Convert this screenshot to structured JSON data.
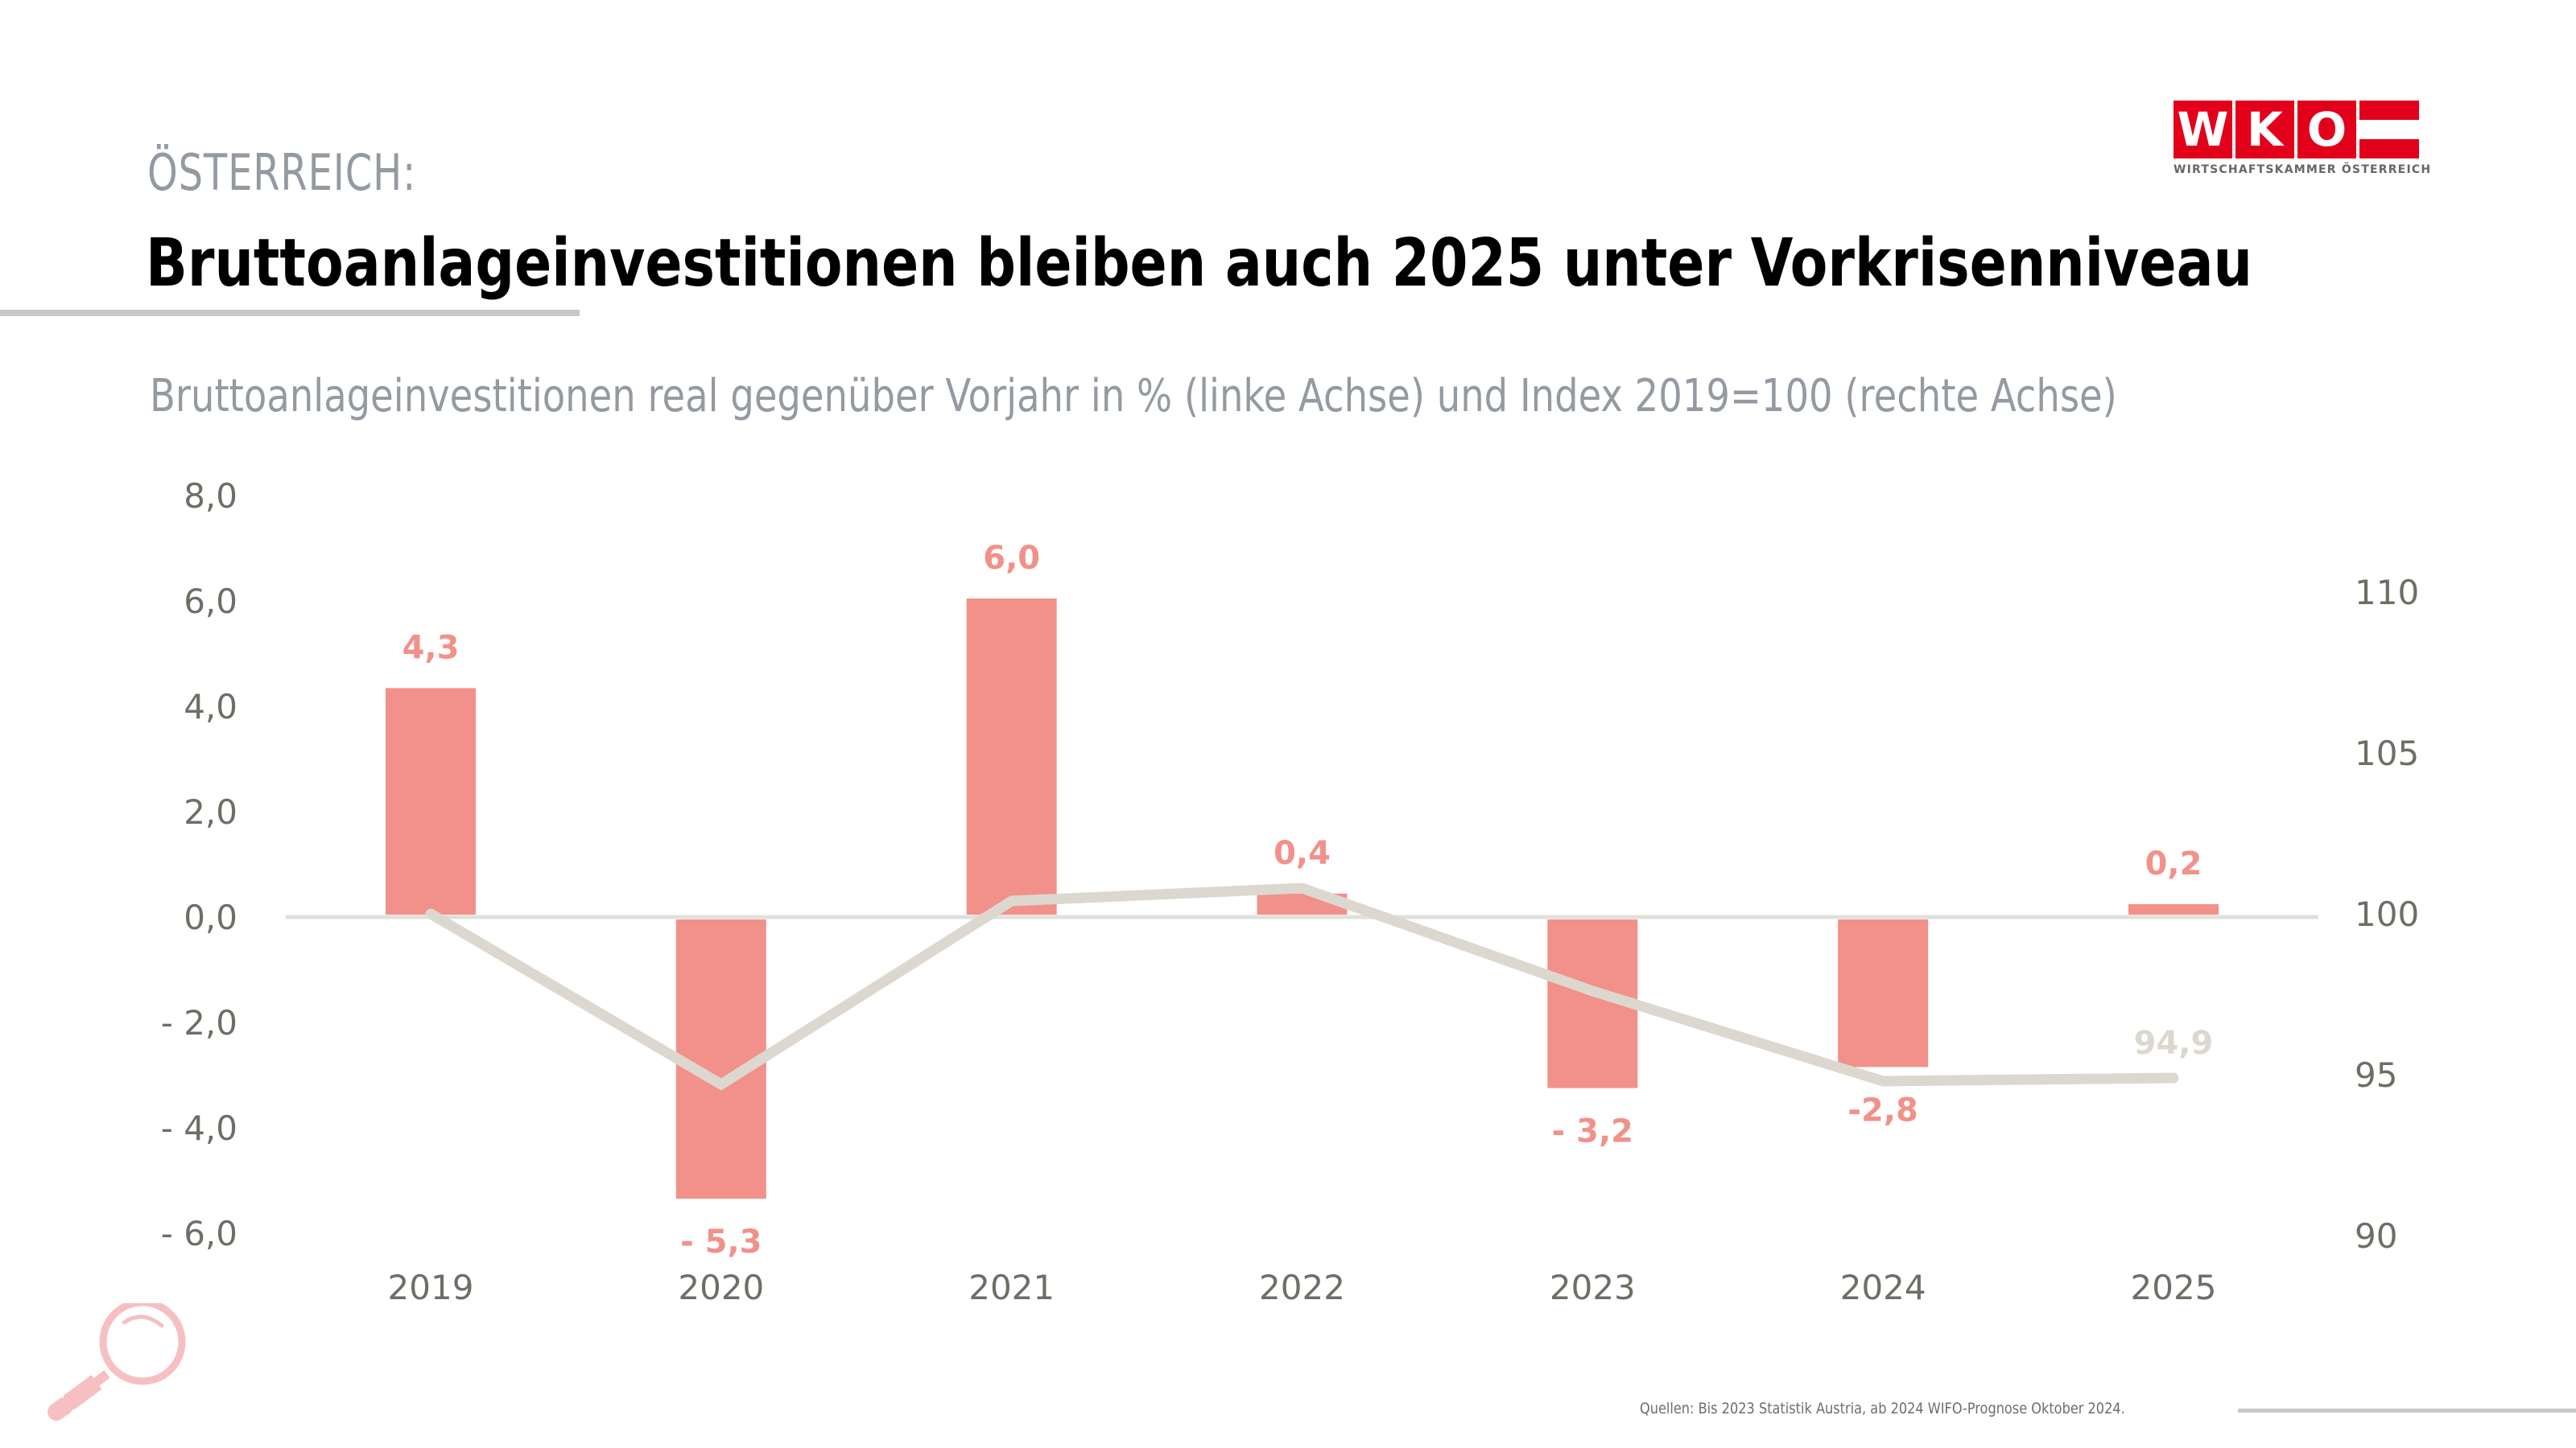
{
  "header": {
    "kicker": "ÖSTERREICH:",
    "title": "Bruttoanlageinvestitionen bleiben auch 2025 unter Vorkrisenniveau",
    "subtitle": "Bruttoanlageinvestitionen real gegenüber Vorjahr in % (linke Achse) und Index 2019=100 (rechte Achse)"
  },
  "logo": {
    "letters": [
      "W",
      "K",
      "O"
    ],
    "tagline": "WIRTSCHAFTSKAMMER ÖSTERREICH",
    "brand_color": "#e2001a"
  },
  "footer": {
    "source": "Quellen: Bis 2023 Statistik Austria, ab 2024 WIFO-Prognose Oktober 2024.",
    "icon": "magnifier-icon"
  },
  "colors": {
    "bar": "#f29189",
    "bar_label": "#f29189",
    "line": "#dcd8d0",
    "line_label": "#dcd8d0",
    "axis_text": "#6e6e66",
    "zero_line": "#e0e0dc"
  },
  "chart_data": {
    "type": "bar",
    "title": "Bruttoanlageinvestitionen bleiben auch 2025 unter Vorkrisenniveau",
    "subtitle": "Bruttoanlageinvestitionen real gegenüber Vorjahr in % (linke Achse) und Index 2019=100 (rechte Achse)",
    "categories": [
      "2019",
      "2020",
      "2021",
      "2022",
      "2023",
      "2024",
      "2025"
    ],
    "series": [
      {
        "name": "Bruttoanlageinvestitionen real, Veränderung gg. Vorjahr in %",
        "type": "bar",
        "axis": "left",
        "values": [
          4.3,
          -5.3,
          6.0,
          0.4,
          -3.2,
          -2.8,
          0.2
        ],
        "labels": [
          "4,3",
          "- 5,3",
          "6,0",
          "0,4",
          "- 3,2",
          "-2,8",
          "0,2"
        ]
      },
      {
        "name": "Index 2019=100",
        "type": "line",
        "axis": "right",
        "values": [
          100.0,
          94.7,
          100.4,
          100.8,
          97.6,
          94.8,
          94.9
        ],
        "labels": [
          null,
          null,
          null,
          null,
          null,
          null,
          "94,9"
        ]
      }
    ],
    "y_left": {
      "range": [
        -6,
        8
      ],
      "ticks": [
        8,
        6,
        4,
        2,
        0,
        -2,
        -4,
        -6
      ],
      "tick_labels": [
        "8,0",
        "6,0",
        "4,0",
        "2,0",
        "0,0",
        "- 2,0",
        "- 4,0",
        "- 6,0"
      ]
    },
    "y_right": {
      "range": [
        90,
        110
      ],
      "ticks": [
        110,
        105,
        100,
        95,
        90
      ],
      "tick_labels": [
        "110",
        "105",
        "100",
        "95",
        "90"
      ]
    },
    "xlabel": "",
    "ylabel": "",
    "grid": false,
    "legend": "none"
  }
}
